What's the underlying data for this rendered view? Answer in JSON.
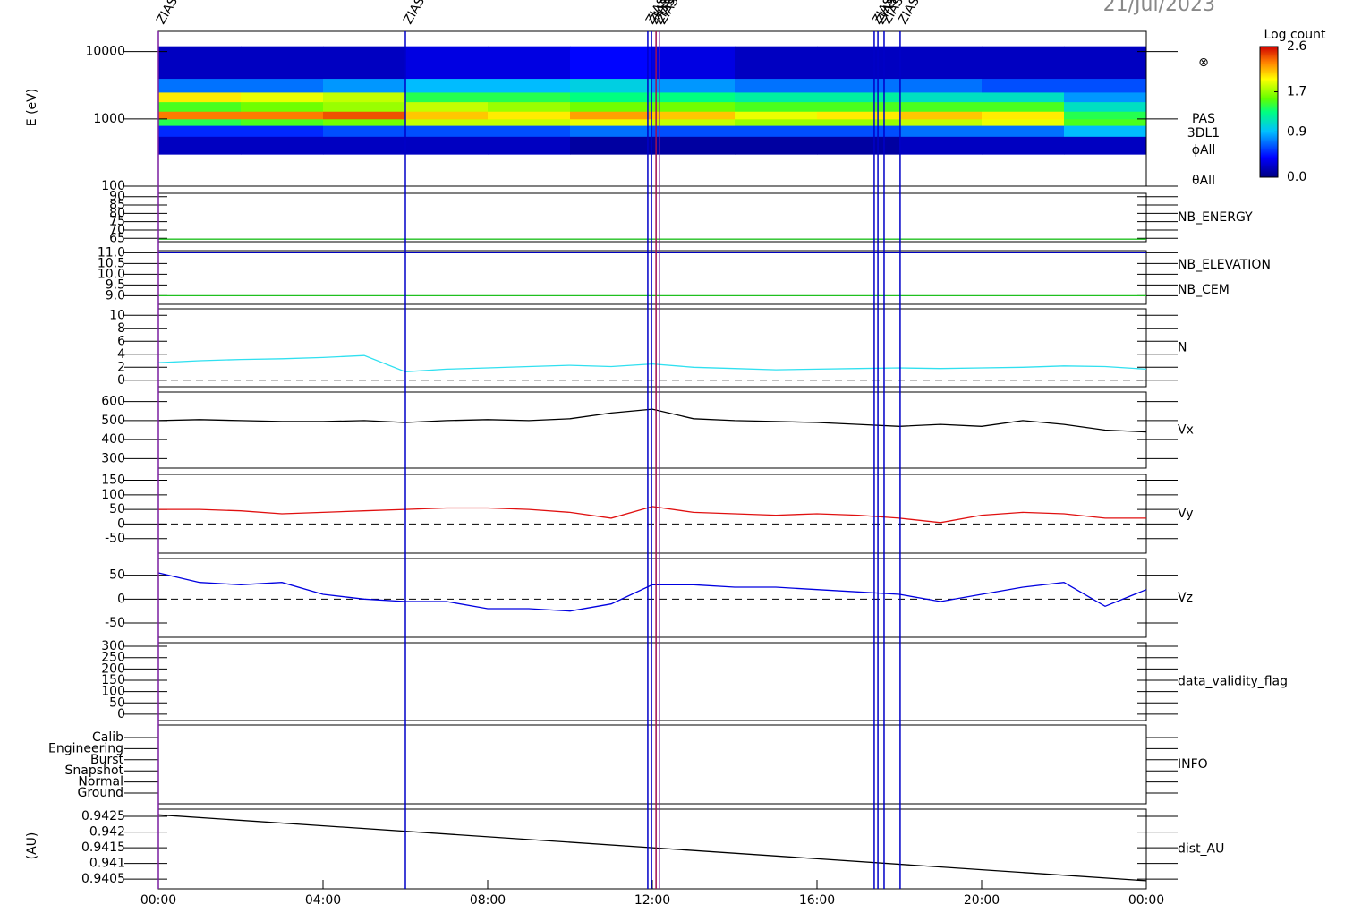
{
  "date": "21/Jul/2023",
  "x": [
    0,
    1,
    2,
    3,
    4,
    5,
    6,
    7,
    8,
    9,
    10,
    11,
    12,
    13,
    14,
    15,
    16,
    17,
    18,
    19,
    20,
    21,
    22,
    23,
    24
  ],
  "xlim": [
    0,
    24
  ],
  "xticks": [
    {
      "value": 0,
      "label": "00:00"
    },
    {
      "value": 4,
      "label": "04:00"
    },
    {
      "value": 8,
      "label": "08:00"
    },
    {
      "value": 12,
      "label": "12:00"
    },
    {
      "value": 16,
      "label": "16:00"
    },
    {
      "value": 20,
      "label": "20:00"
    },
    {
      "value": 24,
      "label": "00:00"
    }
  ],
  "events": [
    {
      "time": 0,
      "label": "ZIAS",
      "color": "#7a1fa0"
    },
    {
      "time": 6.0,
      "label": "ZIAS",
      "color": "#0000c8"
    },
    {
      "time": 11.89,
      "label": "ZIAS",
      "color": "#0000c8"
    },
    {
      "time": 11.98,
      "label": "ZIAS",
      "color": "#0000c8"
    },
    {
      "time": 12.09,
      "label": "ZIAS",
      "color": "#a01050"
    },
    {
      "time": 12.17,
      "label": "ZIAS",
      "color": "#7a1fa0"
    },
    {
      "time": 17.39,
      "label": "ZIAS",
      "color": "#0000c8"
    },
    {
      "time": 17.48,
      "label": "ZIAS",
      "color": "#0000c8"
    },
    {
      "time": 17.63,
      "label": "ZIAS",
      "color": "#0000c8"
    },
    {
      "time": 18.02,
      "label": "ZIAS",
      "color": "#0000c8"
    }
  ],
  "chart_data": [
    {
      "type": "heatmap",
      "ylabel": "E (eV)",
      "log": true,
      "ylim": [
        100,
        20000
      ],
      "yticks": [
        100,
        1000,
        10000
      ],
      "annotations": [
        "⊗",
        "PAS",
        "3DL1",
        "ϕAll",
        "θAll"
      ],
      "x_edges": [
        0,
        2,
        4,
        6,
        8,
        10,
        12,
        14,
        16,
        18,
        20,
        22,
        24
      ],
      "energy_edges": [
        300,
        550,
        800,
        1000,
        1300,
        1800,
        2500,
        4000,
        12000
      ],
      "values": [
        [
          0.2,
          0.5,
          1.4,
          2.3,
          1.5,
          2.0,
          0.7,
          0.2
        ],
        [
          0.2,
          0.5,
          1.5,
          2.3,
          1.6,
          1.9,
          0.7,
          0.2
        ],
        [
          0.2,
          0.6,
          1.6,
          2.4,
          1.7,
          1.8,
          0.8,
          0.2
        ],
        [
          0.2,
          0.6,
          1.8,
          2.1,
          1.8,
          1.4,
          0.9,
          0.3
        ],
        [
          0.2,
          0.6,
          1.8,
          2.0,
          1.7,
          1.4,
          0.9,
          0.3
        ],
        [
          0.1,
          0.7,
          1.9,
          2.2,
          1.6,
          1.3,
          1.0,
          0.4
        ],
        [
          0.1,
          0.6,
          1.8,
          2.1,
          1.6,
          1.3,
          0.8,
          0.3
        ],
        [
          0.1,
          0.6,
          1.7,
          1.9,
          1.5,
          1.2,
          0.7,
          0.2
        ],
        [
          0.1,
          0.6,
          1.7,
          2.0,
          1.5,
          1.2,
          0.7,
          0.2
        ],
        [
          0.2,
          0.7,
          1.8,
          2.1,
          1.5,
          1.1,
          0.7,
          0.2
        ],
        [
          0.2,
          0.7,
          1.9,
          2.0,
          1.5,
          1.1,
          0.6,
          0.2
        ],
        [
          0.2,
          0.9,
          1.5,
          1.4,
          1.1,
          0.8,
          0.6,
          0.2
        ]
      ],
      "colorbar": {
        "label": "Log count",
        "clim": [
          0,
          2.6
        ],
        "ticks": [
          {
            "value": 0,
            "label": "0.0"
          },
          {
            "value": 0.9,
            "label": "0.9"
          },
          {
            "value": 1.7,
            "label": "1.7"
          },
          {
            "value": 2.6,
            "label": "2.6"
          }
        ]
      }
    },
    {
      "type": "line",
      "ylim": [
        63,
        92
      ],
      "yticks": [
        65,
        70,
        75,
        80,
        85,
        90
      ],
      "series": [
        {
          "name": "NB_ENERGY",
          "color": "#20c020",
          "x": [
            0,
            24
          ],
          "values": [
            64.5,
            64.5
          ]
        }
      ]
    },
    {
      "type": "line",
      "ylim": [
        8.6,
        11.1
      ],
      "yticks": [
        {
          "value": 9,
          "label": "9.0"
        },
        {
          "value": 9.5,
          "label": "9.5"
        },
        {
          "value": 10,
          "label": "10.0"
        },
        {
          "value": 10.5,
          "label": "10.5"
        },
        {
          "value": 11,
          "label": "11.0"
        }
      ],
      "series": [
        {
          "name": "NB_ELEVATION",
          "color": "#20c020",
          "x": [
            0,
            24
          ],
          "values": [
            9.0,
            9.0
          ]
        },
        {
          "name": "NB_CEM",
          "color": "#0000c0",
          "x": [
            0,
            24
          ],
          "values": [
            11.0,
            11.0
          ]
        }
      ]
    },
    {
      "type": "line",
      "ylim": [
        -1,
        11
      ],
      "yticks": [
        0,
        2,
        4,
        6,
        8,
        10
      ],
      "zero_line": true,
      "series": [
        {
          "name": "N",
          "color": "#30e0f0",
          "values": [
            2.7,
            3.0,
            3.2,
            3.3,
            3.5,
            3.8,
            1.3,
            1.7,
            1.9,
            2.1,
            2.3,
            2.1,
            2.5,
            2.0,
            1.8,
            1.6,
            1.7,
            1.8,
            1.9,
            1.8,
            1.9,
            2.0,
            2.2,
            2.1,
            1.7
          ]
        }
      ]
    },
    {
      "type": "line",
      "ylim": [
        250,
        650
      ],
      "yticks": [
        300,
        400,
        500,
        600
      ],
      "series": [
        {
          "name": "Vx",
          "color": "#000000",
          "values": [
            500,
            505,
            500,
            495,
            495,
            500,
            490,
            500,
            505,
            500,
            510,
            540,
            560,
            510,
            500,
            495,
            490,
            480,
            470,
            480,
            470,
            500,
            480,
            450,
            440
          ]
        }
      ]
    },
    {
      "type": "line",
      "ylim": [
        -100,
        170
      ],
      "yticks": [
        -50,
        0,
        50,
        100,
        150
      ],
      "zero_line": true,
      "series": [
        {
          "name": "Vy",
          "color": "#e01010",
          "values": [
            50,
            50,
            45,
            35,
            40,
            45,
            50,
            55,
            55,
            50,
            40,
            20,
            60,
            40,
            35,
            30,
            35,
            30,
            20,
            5,
            30,
            40,
            35,
            20,
            20
          ]
        }
      ]
    },
    {
      "type": "line",
      "ylim": [
        -80,
        85
      ],
      "yticks": [
        -50,
        0,
        50
      ],
      "zero_line": true,
      "series": [
        {
          "name": "Vz",
          "color": "#0000e0",
          "values": [
            55,
            35,
            30,
            35,
            10,
            0,
            -5,
            -5,
            -20,
            -20,
            -25,
            -10,
            30,
            30,
            25,
            25,
            20,
            15,
            10,
            -5,
            10,
            25,
            35,
            -15,
            20
          ]
        }
      ]
    },
    {
      "type": "line",
      "ylim": [
        -28,
        316
      ],
      "yticks": [
        0,
        50,
        100,
        150,
        200,
        250,
        300
      ],
      "series": [
        {
          "name": "data_validity_flag",
          "color": "#000000"
        }
      ]
    },
    {
      "type": "category",
      "categories": [
        "Calib",
        "Engineering",
        "Burst",
        "Snapshot",
        "Normal",
        "Ground"
      ],
      "series": [
        {
          "name": "INFO",
          "color": "#000000"
        }
      ]
    },
    {
      "type": "line",
      "ylabel": "(AU)",
      "ylim": [
        0.94019,
        0.94273
      ],
      "yticks": [
        0.9405,
        0.941,
        0.9415,
        0.942,
        0.9425
      ],
      "series": [
        {
          "name": "dist_AU",
          "color": "#000000",
          "x": [
            0,
            24
          ],
          "values": [
            0.94255,
            0.94045
          ]
        }
      ]
    }
  ]
}
